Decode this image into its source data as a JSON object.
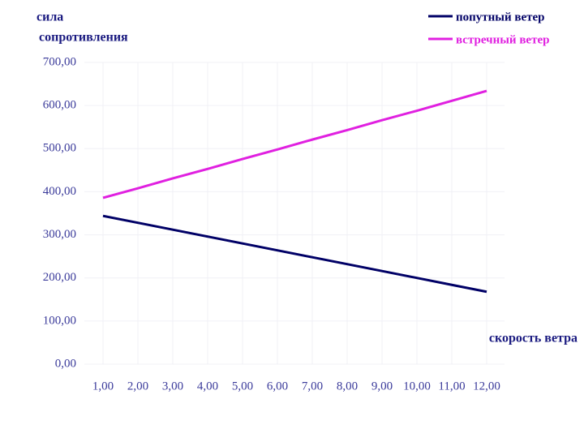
{
  "chart_data": {
    "type": "line",
    "y_label_lines": [
      "сила",
      "сопротивления"
    ],
    "x_label": "скорость ветра",
    "categories": [
      "1,00",
      "2,00",
      "3,00",
      "4,00",
      "5,00",
      "6,00",
      "7,00",
      "8,00",
      "9,00",
      "10,00",
      "11,00",
      "12,00"
    ],
    "series": [
      {
        "name": "попутный ветер",
        "color": "#000066",
        "values": [
          344,
          328,
          312,
          296,
          280,
          264,
          248,
          232,
          216,
          200,
          184,
          168
        ]
      },
      {
        "name": "встречный ветер",
        "color": "#e020e0",
        "values": [
          386,
          408,
          431,
          453,
          476,
          498,
          521,
          543,
          566,
          588,
          611,
          634
        ]
      }
    ],
    "ylim": [
      0,
      700
    ],
    "yticks": [
      {
        "value": 0,
        "label": "0,00"
      },
      {
        "value": 100,
        "label": "100,00"
      },
      {
        "value": 200,
        "label": "200,00"
      },
      {
        "value": 300,
        "label": "300,00"
      },
      {
        "value": 400,
        "label": "400,00"
      },
      {
        "value": 500,
        "label": "500,00"
      },
      {
        "value": 600,
        "label": "600,00"
      },
      {
        "value": 700,
        "label": "700,00"
      }
    ],
    "grid": true,
    "legend": "top-right"
  }
}
